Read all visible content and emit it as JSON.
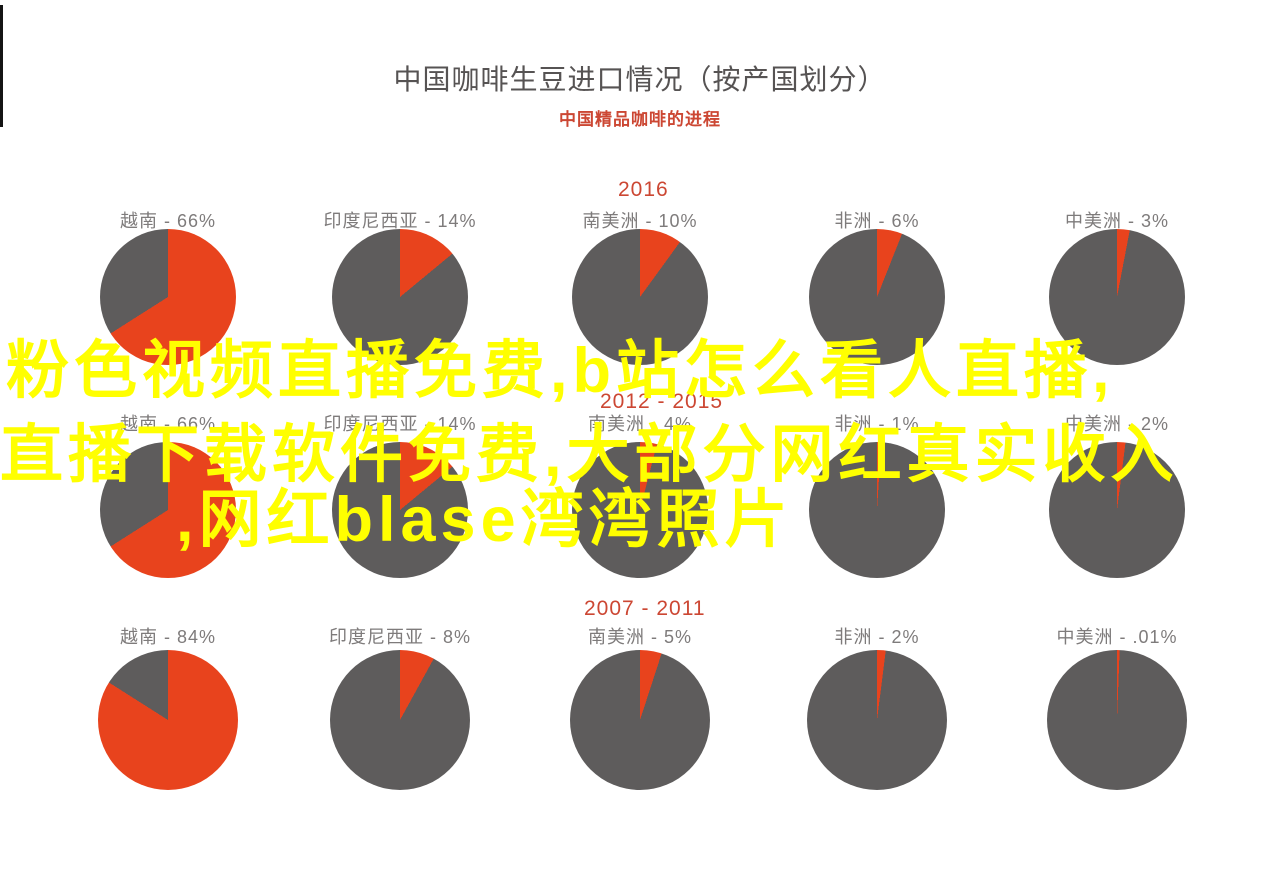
{
  "page": {
    "title": "中国咖啡生豆进口情况（按产国划分）",
    "subtitle": "中国精品咖啡的进程"
  },
  "overlay": {
    "color": "#ffff00",
    "lines": [
      "粉色视频直播免费,b站怎么看人直播,",
      "直播下载软件免费,大部分网红真实收入",
      ",网红blase湾湾照片"
    ]
  },
  "colors": {
    "slice_red": "#e8431d",
    "slice_gray": "#5e5c5c",
    "accent_red": "#cc4733",
    "title_gray": "#565353",
    "label_gray": "#7e7b7b"
  },
  "chart_data": {
    "type": "pie",
    "title": "中国咖啡生豆进口情况（按产国划分）",
    "subtitle": "中国精品咖啡的进程",
    "legend_note": "red slice = share of imports, gray = remainder",
    "rows": [
      {
        "period": "2016",
        "items": [
          {
            "name": "越南",
            "value": 66,
            "label": "越南 - 66%"
          },
          {
            "name": "印度尼西亚",
            "value": 14,
            "label": "印度尼西亚 - 14%"
          },
          {
            "name": "南美洲",
            "value": 10,
            "label": "南美洲 - 10%"
          },
          {
            "name": "非洲",
            "value": 6,
            "label": "非洲 - 6%"
          },
          {
            "name": "中美洲",
            "value": 3,
            "label": "中美洲 - 3%"
          }
        ]
      },
      {
        "period": "2012 - 2015",
        "items": [
          {
            "name": "越南",
            "value": 66,
            "label": "越南 - 66%"
          },
          {
            "name": "印度尼西亚",
            "value": 14,
            "label": "印度尼西亚 - 14%"
          },
          {
            "name": "南美洲",
            "value": 4,
            "label": "南美洲 - 4%"
          },
          {
            "name": "非洲",
            "value": 1,
            "label": "非洲 - 1%"
          },
          {
            "name": "中美洲",
            "value": 2,
            "label": "中美洲 - 2%"
          }
        ]
      },
      {
        "period": "2007 - 2011",
        "items": [
          {
            "name": "越南",
            "value": 84,
            "label": "越南 - 84%"
          },
          {
            "name": "印度尼西亚",
            "value": 8,
            "label": "印度尼西亚 - 8%"
          },
          {
            "name": "南美洲",
            "value": 5,
            "label": "南美洲 - 5%"
          },
          {
            "name": "非洲",
            "value": 2,
            "label": "非洲 - 2%"
          },
          {
            "name": "中美洲",
            "value": 0.01,
            "label": "中美洲 - .01%"
          }
        ]
      }
    ]
  }
}
